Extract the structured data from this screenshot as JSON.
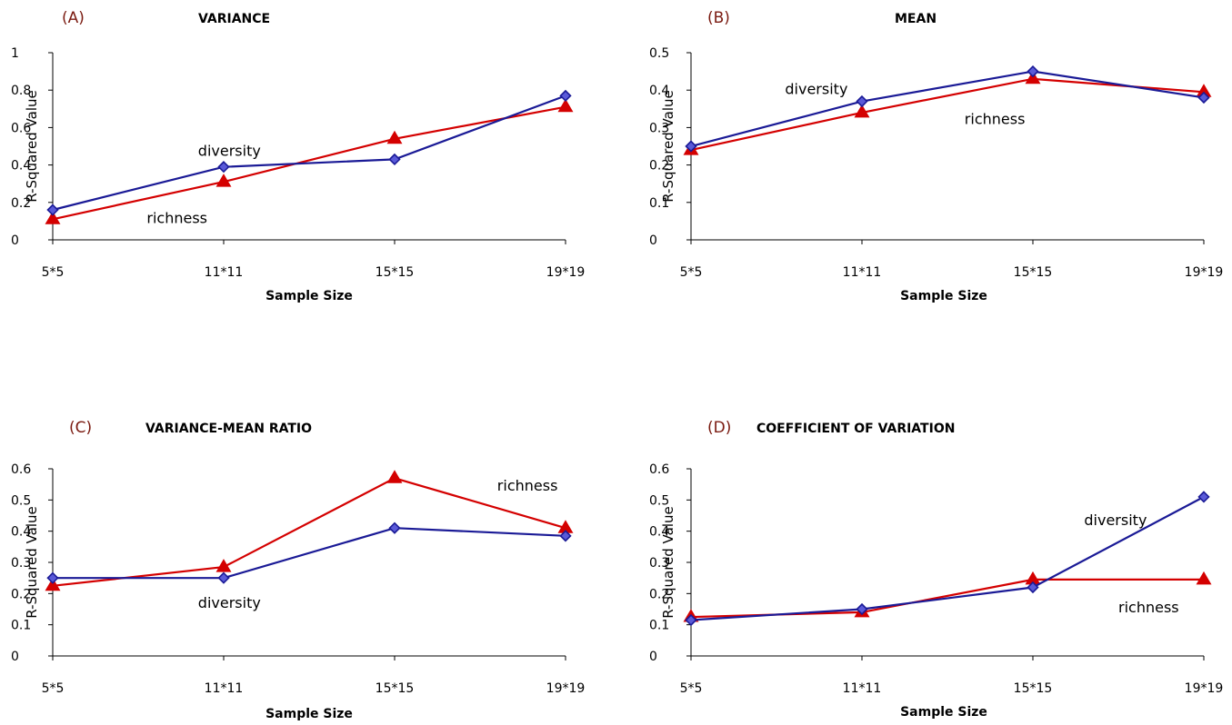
{
  "colors": {
    "letter": "#7a1a10",
    "diversity": "#1a1a96",
    "richness": "#d40000"
  },
  "chart_data": [
    {
      "type": "line",
      "panel": "(A)",
      "title": "VARIANCE",
      "xlabel": "Sample Size",
      "ylabel": "R-Squared Value",
      "categories": [
        "5*5",
        "11*11",
        "15*15",
        "19*19"
      ],
      "ylim": [
        0,
        1
      ],
      "yticks": [
        "0",
        "0.2",
        "0.4",
        "0.6",
        "0.8",
        "1"
      ],
      "series": [
        {
          "name": "diversity",
          "marker": "diamond",
          "values": [
            0.16,
            0.39,
            0.43,
            0.77
          ]
        },
        {
          "name": "richness",
          "marker": "triangle",
          "values": [
            0.11,
            0.31,
            0.54,
            0.71
          ]
        }
      ],
      "annotations": [
        {
          "text": "diversity",
          "series": "diversity",
          "x": 0.85,
          "y": 0.45
        },
        {
          "text": "richness",
          "series": "richness",
          "x": 0.55,
          "y": 0.09
        }
      ],
      "grid": false,
      "legend": "none"
    },
    {
      "type": "line",
      "panel": "(B)",
      "title": "MEAN",
      "xlabel": "Sample Size",
      "ylabel": "R-Squared Value",
      "categories": [
        "5*5",
        "11*11",
        "15*15",
        "19*19"
      ],
      "ylim": [
        0,
        0.5
      ],
      "yticks": [
        "0",
        "0.1",
        "0.2",
        "0.3",
        "0.4",
        "0.5"
      ],
      "series": [
        {
          "name": "diversity",
          "marker": "diamond",
          "values": [
            0.25,
            0.37,
            0.45,
            0.38
          ]
        },
        {
          "name": "richness",
          "marker": "triangle",
          "values": [
            0.24,
            0.34,
            0.43,
            0.395
          ]
        }
      ],
      "annotations": [
        {
          "text": "diversity",
          "series": "diversity",
          "x": 0.55,
          "y": 0.39
        },
        {
          "text": "richness",
          "series": "richness",
          "x": 1.6,
          "y": 0.31
        }
      ],
      "grid": false,
      "legend": "none"
    },
    {
      "type": "line",
      "panel": "(C)",
      "title": "VARIANCE-MEAN RATIO",
      "xlabel": "Sample Size",
      "ylabel": "R-Squared Value",
      "categories": [
        "5*5",
        "11*11",
        "15*15",
        "19*19"
      ],
      "ylim": [
        0,
        0.6
      ],
      "yticks": [
        "0",
        "0.1",
        "0.2",
        "0.3",
        "0.4",
        "0.5",
        "0.6"
      ],
      "series": [
        {
          "name": "diversity",
          "marker": "diamond",
          "values": [
            0.25,
            0.25,
            0.41,
            0.385
          ]
        },
        {
          "name": "richness",
          "marker": "triangle",
          "values": [
            0.225,
            0.285,
            0.57,
            0.41
          ]
        }
      ],
      "annotations": [
        {
          "text": "diversity",
          "series": "diversity",
          "x": 0.85,
          "y": 0.155
        },
        {
          "text": "richness",
          "series": "richness",
          "x": 2.6,
          "y": 0.53
        }
      ],
      "grid": false,
      "legend": "none"
    },
    {
      "type": "line",
      "panel": "(D)",
      "title": "COEFFICIENT OF VARIATION",
      "xlabel": "Sample Size",
      "ylabel": "R-Squared Value",
      "categories": [
        "5*5",
        "11*11",
        "15*15",
        "19*19"
      ],
      "ylim": [
        0,
        0.6
      ],
      "yticks": [
        "0",
        "0.1",
        "0.2",
        "0.3",
        "0.4",
        "0.5",
        "0.6"
      ],
      "series": [
        {
          "name": "diversity",
          "marker": "diamond",
          "values": [
            0.115,
            0.15,
            0.22,
            0.51
          ]
        },
        {
          "name": "richness",
          "marker": "triangle",
          "values": [
            0.125,
            0.14,
            0.245,
            0.245
          ]
        }
      ],
      "annotations": [
        {
          "text": "diversity",
          "series": "diversity",
          "x": 2.3,
          "y": 0.42
        },
        {
          "text": "richness",
          "series": "richness",
          "x": 2.5,
          "y": 0.14
        }
      ],
      "grid": false,
      "legend": "none"
    }
  ]
}
